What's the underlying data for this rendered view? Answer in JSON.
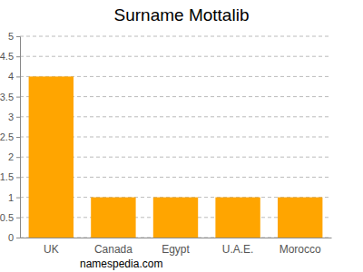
{
  "chart_data": {
    "type": "bar",
    "title": "Surname Mottalib",
    "categories": [
      "UK",
      "Canada",
      "Egypt",
      "U.A.E.",
      "Morocco"
    ],
    "values": [
      4,
      1,
      1,
      1,
      1
    ],
    "color": "#ffa500",
    "ylim": [
      0,
      5
    ],
    "yticks": [
      0,
      0.5,
      1,
      1.5,
      2,
      2.5,
      3,
      3.5,
      4,
      4.5,
      5
    ],
    "grid": true,
    "annotations": [
      "namespedia.com"
    ]
  }
}
